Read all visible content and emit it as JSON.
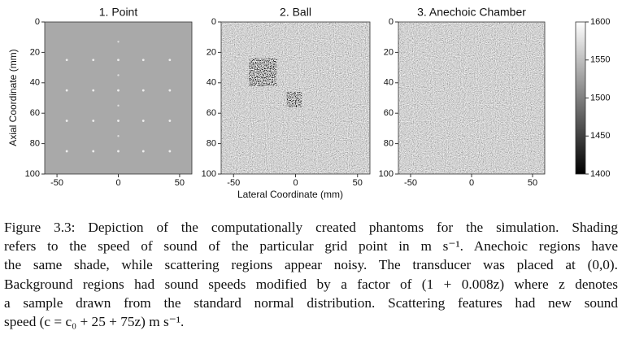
{
  "figure": {
    "panels": [
      {
        "title": "1. Point",
        "xlim": [
          -60,
          60
        ],
        "ylim": [
          0,
          100
        ],
        "xticks": [
          -50,
          0,
          50
        ],
        "yticks": [
          0,
          20,
          40,
          60,
          80,
          100
        ]
      },
      {
        "title": "2. Ball",
        "xlim": [
          -60,
          60
        ],
        "ylim": [
          0,
          100
        ],
        "xticks": [
          -50,
          0,
          50
        ],
        "yticks": [
          0,
          20,
          40,
          60,
          80,
          100
        ]
      },
      {
        "title": "3. Anechoic Chamber",
        "xlim": [
          -60,
          60
        ],
        "ylim": [
          0,
          100
        ],
        "xticks": [
          -50,
          0,
          50
        ],
        "yticks": [
          0,
          20,
          40,
          60,
          80,
          100
        ]
      }
    ],
    "xlabel": "Lateral Coordinate (mm)",
    "ylabel": "Axial Coordinate (mm)",
    "colorbar": {
      "lim": [
        1400,
        1600
      ],
      "ticks": [
        1400,
        1450,
        1500,
        1550,
        1600
      ]
    }
  },
  "caption": {
    "lines": [
      "Figure 3.3: Depiction of the computationally created phantoms for the simulation. Shading",
      "refers to the speed of sound of the particular grid point in m s⁻¹. Anechoic regions have",
      "the same shade, while scattering regions appear noisy. The transducer was placed at (0,0).",
      "Background regions had sound speeds modified by a factor of (1 + 0.008z) where z denotes",
      "a sample drawn from the standard normal distribution. Scattering features had new sound",
      "speed (c = c₀ + 25 + 75z) m s⁻¹."
    ]
  }
}
